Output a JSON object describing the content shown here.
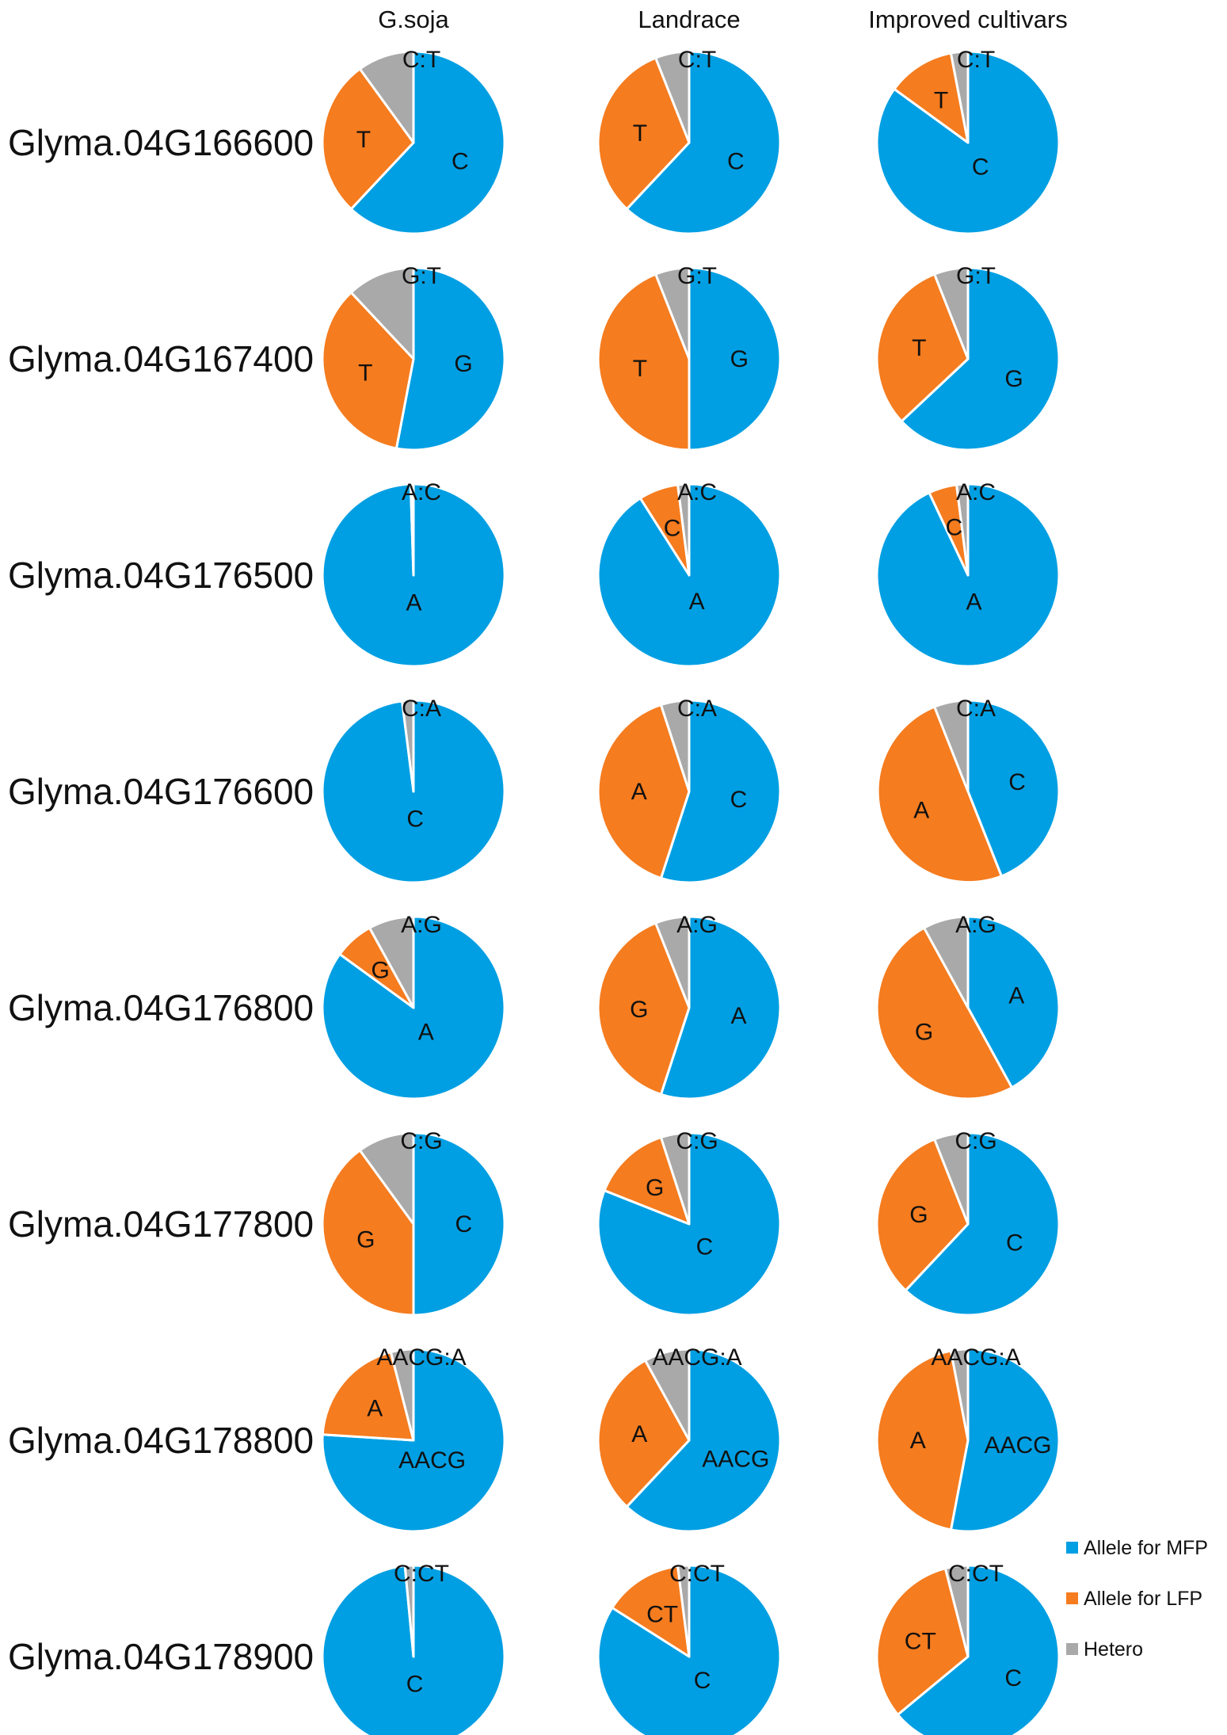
{
  "colors": {
    "mfp": "#009fe3",
    "lfp": "#f57c1f",
    "hetero": "#a9a9a9"
  },
  "chart_data": {
    "type": "pie",
    "columns": [
      "G.soja",
      "Landrace",
      "Improved cultivars"
    ],
    "legend": {
      "position": "bottom-right",
      "entries": [
        "Allele for MFP",
        "Allele for LFP",
        "Hetero"
      ]
    },
    "rows": [
      {
        "gene": "Glyma.04G166600",
        "mfp": "C",
        "lfp": "T",
        "hetero": "C:T",
        "values": [
          [
            62,
            28,
            10
          ],
          [
            62,
            32,
            6
          ],
          [
            85,
            12,
            3
          ]
        ]
      },
      {
        "gene": "Glyma.04G167400",
        "mfp": "G",
        "lfp": "T",
        "hetero": "G:T",
        "values": [
          [
            53,
            35,
            12
          ],
          [
            50,
            44,
            6
          ],
          [
            63,
            31,
            6
          ]
        ]
      },
      {
        "gene": "Glyma.04G176500",
        "mfp": "A",
        "lfp": "C",
        "hetero": "A:C",
        "values": [
          [
            99.5,
            0,
            0.5
          ],
          [
            91,
            7,
            2
          ],
          [
            93,
            5,
            2
          ]
        ]
      },
      {
        "gene": "Glyma.04G176600",
        "mfp": "C",
        "lfp": "A",
        "hetero": "C:A",
        "values": [
          [
            98,
            0,
            2
          ],
          [
            55,
            40,
            5
          ],
          [
            44,
            50,
            6
          ]
        ]
      },
      {
        "gene": "Glyma.04G176800",
        "mfp": "A",
        "lfp": "G",
        "hetero": "A:G",
        "values": [
          [
            85,
            7,
            8
          ],
          [
            55,
            39,
            6
          ],
          [
            42,
            50,
            8
          ]
        ]
      },
      {
        "gene": "Glyma.04G177800",
        "mfp": "C",
        "lfp": "G",
        "hetero": "C:G",
        "values": [
          [
            50,
            40,
            10
          ],
          [
            81,
            14,
            5
          ],
          [
            62,
            32,
            6
          ]
        ]
      },
      {
        "gene": "Glyma.04G178800",
        "mfp": "AACG",
        "lfp": "A",
        "hetero": "AACG:A",
        "values": [
          [
            76,
            20,
            4
          ],
          [
            62,
            30,
            8
          ],
          [
            53,
            44,
            3
          ]
        ]
      },
      {
        "gene": "Glyma.04G178900",
        "mfp": "C",
        "lfp": "CT",
        "hetero": "C:CT",
        "values": [
          [
            98.5,
            0,
            1.5
          ],
          [
            84,
            14,
            2
          ],
          [
            64,
            32,
            4
          ]
        ]
      }
    ]
  }
}
